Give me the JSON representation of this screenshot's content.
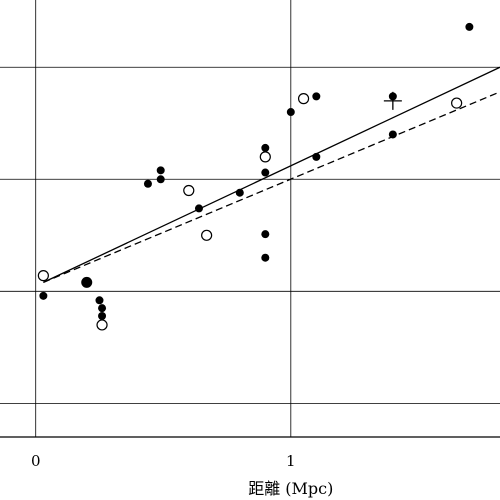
{
  "chart_data": {
    "type": "scatter",
    "xlabel": "距離 (Mpc)",
    "ylabel": "",
    "xlim": [
      -0.14,
      1.82
    ],
    "ylim": [
      -650,
      1300
    ],
    "x_ticks": [
      0,
      1
    ],
    "x_tick_labels": [
      "0",
      "1"
    ],
    "x_grid": [
      0,
      1
    ],
    "y_grid": [
      -500,
      0,
      500,
      1000
    ],
    "grid": true,
    "series": [
      {
        "marker": "filled-circle",
        "points": [
          [
            0.03,
            -20
          ],
          [
            0.2,
            40
          ],
          [
            0.25,
            -40
          ],
          [
            0.26,
            -75
          ],
          [
            0.26,
            -110
          ],
          [
            0.44,
            480
          ],
          [
            0.49,
            500
          ],
          [
            0.49,
            540
          ],
          [
            0.64,
            370
          ],
          [
            0.8,
            440
          ],
          [
            0.9,
            150
          ],
          [
            0.9,
            255
          ],
          [
            0.9,
            530
          ],
          [
            0.9,
            640
          ],
          [
            1.0,
            800
          ],
          [
            1.1,
            600
          ],
          [
            1.1,
            870
          ],
          [
            1.4,
            700
          ],
          [
            1.4,
            870
          ],
          [
            1.7,
            1180
          ]
        ]
      },
      {
        "marker": "open-circle",
        "points": [
          [
            0.03,
            70
          ],
          [
            0.26,
            -150
          ],
          [
            0.6,
            450
          ],
          [
            0.67,
            250
          ],
          [
            0.9,
            600
          ],
          [
            1.05,
            860
          ],
          [
            1.65,
            840
          ]
        ]
      }
    ],
    "plus_markers": [
      [
        1.4,
        850
      ]
    ],
    "big_point": [
      0.2,
      40
    ],
    "lines": [
      {
        "style": "solid",
        "points": [
          [
            0.03,
            40
          ],
          [
            1.82,
            1000
          ]
        ]
      },
      {
        "style": "dashed",
        "points": [
          [
            0.03,
            40
          ],
          [
            1.82,
            890
          ]
        ]
      }
    ]
  }
}
